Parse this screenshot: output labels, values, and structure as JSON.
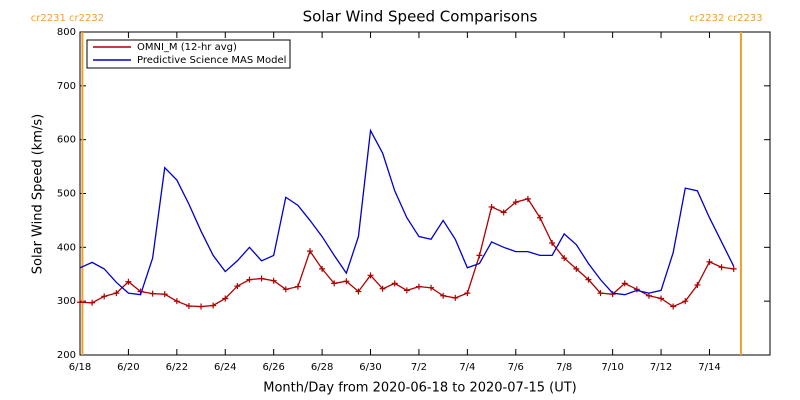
{
  "chart_data": {
    "type": "line",
    "title": "Solar Wind Speed Comparisons",
    "x_label": "Month/Day from 2020-06-18 to 2020-07-15 (UT)",
    "y_label": "Solar Wind Speed (km/s)",
    "x": [
      0,
      0.5,
      1,
      1.5,
      2,
      2.5,
      3,
      3.5,
      4,
      4.5,
      5,
      5.5,
      6,
      6.5,
      7,
      7.5,
      8,
      8.5,
      9,
      9.5,
      10,
      10.5,
      11,
      11.5,
      12,
      12.5,
      13,
      13.5,
      14,
      14.5,
      15,
      15.5,
      16,
      16.5,
      17,
      17.5,
      18,
      18.5,
      19,
      19.5,
      20,
      20.5,
      21,
      21.5,
      22,
      22.5,
      23,
      23.5,
      24,
      24.5,
      25,
      25.5,
      26,
      26.5,
      27
    ],
    "series": [
      {
        "name": "OMNI_M (12-hr avg)",
        "color": "#b00000",
        "markers": true,
        "values": [
          298,
          297,
          309,
          315,
          336,
          318,
          314,
          313,
          300,
          291,
          290,
          292,
          305,
          328,
          340,
          342,
          338,
          322,
          327,
          393,
          360,
          333,
          337,
          318,
          348,
          323,
          333,
          320,
          327,
          325,
          310,
          306,
          315,
          385,
          475,
          465,
          484,
          490,
          455,
          408,
          380,
          360,
          340,
          315,
          313,
          333,
          322,
          310,
          305,
          290,
          300,
          330,
          373,
          363,
          360
        ]
      },
      {
        "name": "Predictive Science MAS Model",
        "color": "#0000cc",
        "markers": false,
        "values": [
          362,
          372,
          360,
          335,
          315,
          312,
          380,
          548,
          525,
          480,
          430,
          385,
          355,
          375,
          400,
          375,
          385,
          493,
          478,
          450,
          420,
          385,
          352,
          420,
          617,
          575,
          505,
          455,
          420,
          415,
          450,
          415,
          362,
          370,
          410,
          400,
          392,
          392,
          385,
          385,
          425,
          405,
          370,
          340,
          315,
          312,
          320,
          315,
          320,
          390,
          510,
          505,
          455,
          410,
          365
        ]
      }
    ],
    "xlim": [
      0,
      28.5
    ],
    "xticks": [
      {
        "value": 0,
        "label": "6/18"
      },
      {
        "value": 2,
        "label": "6/20"
      },
      {
        "value": 4,
        "label": "6/22"
      },
      {
        "value": 6,
        "label": "6/24"
      },
      {
        "value": 8,
        "label": "6/26"
      },
      {
        "value": 10,
        "label": "6/28"
      },
      {
        "value": 12,
        "label": "6/30"
      },
      {
        "value": 14,
        "label": "7/2"
      },
      {
        "value": 16,
        "label": "7/4"
      },
      {
        "value": 18,
        "label": "7/6"
      },
      {
        "value": 20,
        "label": "7/8"
      },
      {
        "value": 22,
        "label": "7/10"
      },
      {
        "value": 24,
        "label": "7/12"
      },
      {
        "value": 26,
        "label": "7/14"
      }
    ],
    "ylim": [
      200,
      800
    ],
    "yticks": [
      200,
      300,
      400,
      500,
      600,
      700,
      800
    ],
    "boundaries": [
      {
        "x": 0.1,
        "label": "cr2231 cr2232",
        "color": "#f0a030"
      },
      {
        "x": 27.3,
        "label": "cr2232 cr2233",
        "color": "#f0a030"
      }
    ],
    "legend": "upper left"
  }
}
